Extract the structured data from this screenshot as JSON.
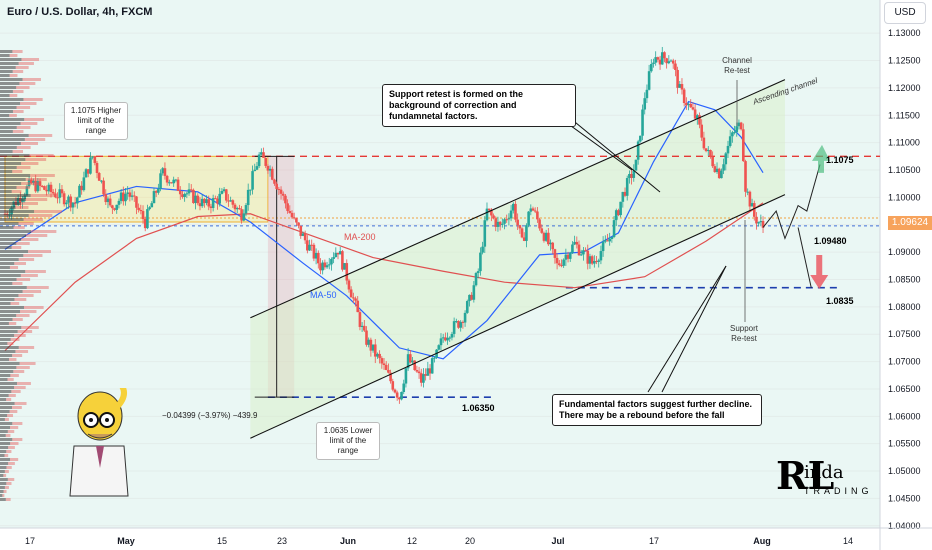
{
  "header": {
    "title": "Euro / U.S. Dollar, 4h, FXCM",
    "currency": "USD"
  },
  "price_tag": "1.09624",
  "annotations": {
    "support_retest": "Support retest is formed on the background of correction and fundamnetal factors.",
    "fundamental": "Fundamental factors suggest further decline. There may be a rebound before the fall",
    "channel_retest": "Channel Re-test",
    "support_retest_label": "Support Re-test",
    "high_limit": "1.1075 Higher limit of the range",
    "low_limit": "1.0635 Lower limit of the range",
    "ascending_channel": "Ascending channel",
    "measure": "−0.04399 (−3.97%) −439.9"
  },
  "levels": {
    "l1": "1.1075",
    "l2": "1.09480",
    "l3": "1.0835",
    "l4": "1.06350"
  },
  "ma_labels": {
    "ma200": "MA-200",
    "ma50": "MA-50"
  },
  "logo": {
    "initials": "RL",
    "name": "inda",
    "sub": "TRADING"
  },
  "colors": {
    "up": "#26a69a",
    "down": "#ef5350",
    "ma50": "#2962ff",
    "ma200": "#e05050",
    "level": "#e53935",
    "blue_level": "#1e3fae"
  },
  "chart_data": {
    "type": "candlestick",
    "title": "Euro / U.S. Dollar, 4h, FXCM",
    "x_ticks": [
      "17",
      "May",
      "15",
      "23",
      "Jun",
      "12",
      "20",
      "Jul",
      "17",
      "Aug",
      "14"
    ],
    "y_ticks": [
      "1.13000",
      "1.12500",
      "1.12000",
      "1.11500",
      "1.11000",
      "1.10500",
      "1.10000",
      "1.09500",
      "1.09000",
      "1.08500",
      "1.08000",
      "1.07500",
      "1.07000",
      "1.06500",
      "1.06000",
      "1.05500",
      "1.05000",
      "1.04500",
      "1.04000"
    ],
    "ylim": [
      1.0385,
      1.1335
    ],
    "path": [
      [
        0,
        1.097
      ],
      [
        6,
        1.1025
      ],
      [
        12,
        1.1005
      ],
      [
        16,
        1.099
      ],
      [
        20,
        1.1075
      ],
      [
        24,
        1.098
      ],
      [
        28,
        1.101
      ],
      [
        32,
        1.0955
      ],
      [
        36,
        1.1045
      ],
      [
        40,
        1.1015
      ],
      [
        46,
        1.0985
      ],
      [
        50,
        1.1005
      ],
      [
        54,
        1.097
      ],
      [
        58,
        1.1075
      ],
      [
        60,
        1.106
      ],
      [
        62,
        1.1025
      ],
      [
        66,
        1.0955
      ],
      [
        72,
        1.0875
      ],
      [
        76,
        1.0905
      ],
      [
        78,
        1.0855
      ],
      [
        82,
        1.0745
      ],
      [
        86,
        1.0695
      ],
      [
        90,
        1.0635
      ],
      [
        92,
        1.0705
      ],
      [
        95,
        1.0665
      ],
      [
        98,
        1.07
      ],
      [
        100,
        1.0745
      ],
      [
        104,
        1.0775
      ],
      [
        106,
        1.081
      ],
      [
        108,
        1.0865
      ],
      [
        110,
        1.0975
      ],
      [
        113,
        1.0945
      ],
      [
        116,
        1.0985
      ],
      [
        118,
        1.0915
      ],
      [
        120,
        1.0985
      ],
      [
        124,
        1.0915
      ],
      [
        126,
        1.0875
      ],
      [
        130,
        1.0915
      ],
      [
        134,
        1.088
      ],
      [
        138,
        1.0925
      ],
      [
        141,
        1.1005
      ],
      [
        144,
        1.106
      ],
      [
        146,
        1.1185
      ],
      [
        148,
        1.1255
      ],
      [
        152,
        1.1255
      ],
      [
        154,
        1.1195
      ],
      [
        158,
        1.114
      ],
      [
        160,
        1.1085
      ],
      [
        163,
        1.1045
      ],
      [
        166,
        1.1115
      ],
      [
        168,
        1.1135
      ],
      [
        169,
        1.102
      ],
      [
        171,
        1.0965
      ],
      [
        173,
        1.0945
      ]
    ],
    "projection": [
      [
        173,
        1.0945
      ],
      [
        176,
        1.0975
      ],
      [
        178,
        1.0925
      ],
      [
        181,
        1.0985
      ],
      [
        183,
        1.0975
      ],
      [
        186,
        1.106
      ]
    ],
    "projection_down": [
      [
        181,
        1.0945
      ],
      [
        184,
        1.0835
      ]
    ],
    "ma50": [
      [
        0,
        1.0905
      ],
      [
        16,
        1.099
      ],
      [
        30,
        1.102
      ],
      [
        44,
        1.101
      ],
      [
        56,
        1.0955
      ],
      [
        68,
        1.088
      ],
      [
        78,
        1.082
      ],
      [
        90,
        1.0725
      ],
      [
        100,
        1.0705
      ],
      [
        110,
        1.0775
      ],
      [
        122,
        1.0895
      ],
      [
        132,
        1.09
      ],
      [
        140,
        1.0935
      ],
      [
        148,
        1.1065
      ],
      [
        156,
        1.1175
      ],
      [
        162,
        1.116
      ],
      [
        168,
        1.111
      ],
      [
        173,
        1.1045
      ]
    ],
    "ma200": [
      [
        0,
        1.072
      ],
      [
        16,
        1.0845
      ],
      [
        30,
        1.0925
      ],
      [
        44,
        1.0965
      ],
      [
        56,
        1.097
      ],
      [
        70,
        1.093
      ],
      [
        84,
        1.089
      ],
      [
        100,
        1.0865
      ],
      [
        114,
        1.0845
      ],
      [
        130,
        1.0835
      ],
      [
        146,
        1.0855
      ],
      [
        160,
        1.092
      ],
      [
        173,
        1.099
      ]
    ],
    "levels": [
      1.1075,
      1.0948,
      1.0835,
      1.0635
    ],
    "channel_lower": [
      [
        56,
        1.056
      ],
      [
        178,
        1.1005
      ]
    ],
    "channel_upper": [
      [
        56,
        1.078
      ],
      [
        178,
        1.1215
      ]
    ]
  }
}
